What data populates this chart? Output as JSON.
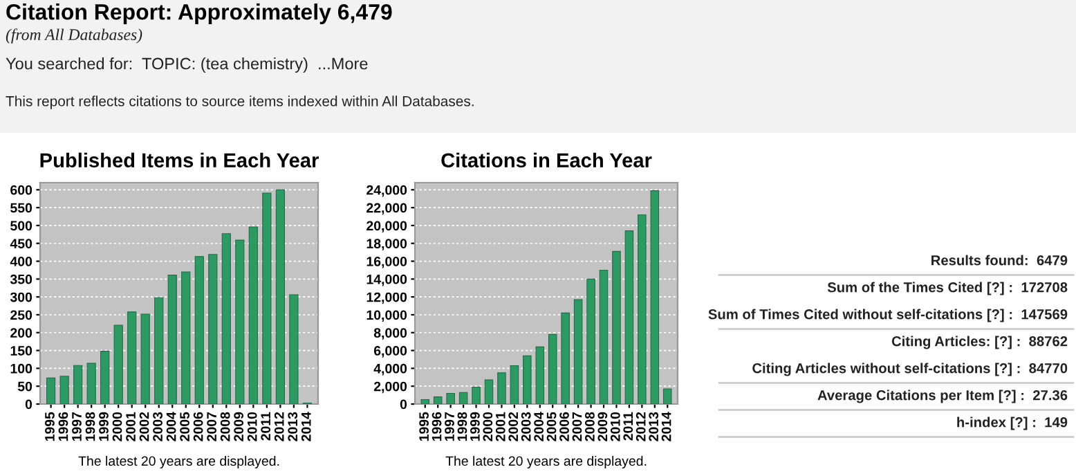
{
  "chart_data": [
    {
      "type": "other",
      "title": "Citation Report: Approximately 6,479",
      "annotations": [
        "(from All Databases)",
        "You searched for:  TOPIC: (tea chemistry)  ...More",
        "This report reflects citations to source items indexed within All Databases."
      ]
    },
    {
      "type": "bar",
      "title": "Published Items in Each Year",
      "categories": [
        "1995",
        "1996",
        "1997",
        "1998",
        "1999",
        "2000",
        "2001",
        "2002",
        "2003",
        "2004",
        "2005",
        "2006",
        "2007",
        "2008",
        "2009",
        "2010",
        "2011",
        "2012",
        "2013",
        "2014"
      ],
      "values": [
        73,
        78,
        108,
        114,
        148,
        221,
        258,
        252,
        298,
        361,
        370,
        413,
        419,
        477,
        459,
        496,
        591,
        600,
        306,
        3
      ],
      "color": "#2e9a63",
      "ylim": [
        0,
        620
      ],
      "yticks": [
        0,
        50,
        100,
        150,
        200,
        250,
        300,
        350,
        400,
        450,
        500,
        550,
        600
      ],
      "grid": "y",
      "annotations": [
        "The latest 20 years are displayed."
      ]
    },
    {
      "type": "bar",
      "title": "Citations in Each Year",
      "categories": [
        "1995",
        "1996",
        "1997",
        "1998",
        "1999",
        "2000",
        "2001",
        "2002",
        "2003",
        "2004",
        "2005",
        "2006",
        "2007",
        "2008",
        "2009",
        "2010",
        "2011",
        "2012",
        "2013",
        "2014"
      ],
      "values": [
        500,
        800,
        1200,
        1300,
        1900,
        2700,
        3500,
        4300,
        5400,
        6400,
        7800,
        10200,
        11700,
        14000,
        15000,
        17100,
        19400,
        21200,
        23900,
        1700
      ],
      "color": "#2e9a63",
      "ylim": [
        0,
        24800
      ],
      "yticks": [
        {
          "value": 0,
          "label": "0"
        },
        {
          "value": 2000,
          "label": "2,000"
        },
        {
          "value": 4000,
          "label": "4,000"
        },
        {
          "value": 6000,
          "label": "6,000"
        },
        {
          "value": 8000,
          "label": "8,000"
        },
        {
          "value": 10000,
          "label": "10,000"
        },
        {
          "value": 12000,
          "label": "12,000"
        },
        {
          "value": 14000,
          "label": "14,000"
        },
        {
          "value": 16000,
          "label": "16,000"
        },
        {
          "value": 18000,
          "label": "18,000"
        },
        {
          "value": 20000,
          "label": "20,000"
        },
        {
          "value": 22000,
          "label": "22,000"
        },
        {
          "value": 24000,
          "label": "24,000"
        }
      ],
      "grid": "y",
      "annotations": [
        "The latest 20 years are displayed."
      ]
    },
    {
      "type": "other",
      "annotations": [
        "Results found:  6479",
        "Sum of the Times Cited [?] :  172708",
        "Sum of Times Cited without self-citations [?] :  147569",
        "Citing Articles: [?] :  88762",
        "Citing Articles without self-citations [?] :  84770",
        "Average Citations per Item [?] :  27.36",
        "h-index [?] :  149"
      ]
    }
  ]
}
